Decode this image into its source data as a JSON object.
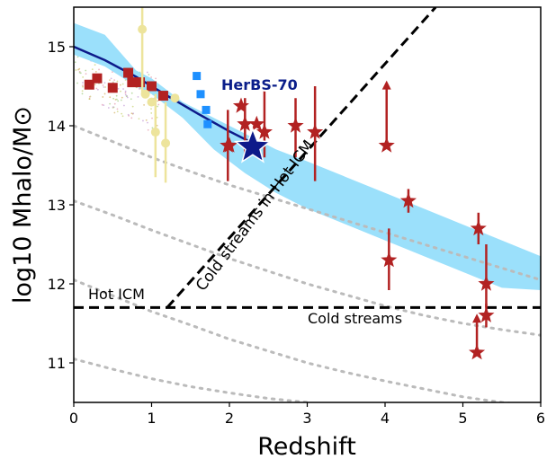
{
  "chart_data": {
    "type": "scatter",
    "xlabel": "Redshift",
    "ylabel": "log10 Mhalo/M⊙",
    "xlim": [
      0,
      6
    ],
    "ylim": [
      10.5,
      15.5
    ],
    "xticks": [
      "0",
      "1",
      "2",
      "3",
      "4",
      "5",
      "6"
    ],
    "yticks": [
      "11",
      "12",
      "13",
      "14",
      "15"
    ],
    "colors": {
      "band": "#9be0fb",
      "track": "#0d1a8a",
      "square_red": "#b22222",
      "square_blue": "#1e90ff",
      "circle_yellow": "#ede49c",
      "star_red": "#b22222",
      "star_herbs": "#0d1a8a",
      "dotted": "#bbbbbb"
    },
    "annotations": {
      "hot_icm": "Hot ICM",
      "cold_streams": "Cold streams",
      "cold_in_hot": "Cold streams in Hot ICM",
      "herbs": "HerBS-70"
    },
    "boundary_horizontal_y": 11.7,
    "boundary_diagonal": [
      [
        1.2,
        11.7
      ],
      [
        4.65,
        15.5
      ]
    ],
    "shaded_band": {
      "x": [
        0,
        0.4,
        0.8,
        1.0,
        1.4,
        1.8,
        2.2,
        2.6,
        3.0,
        3.5,
        4.0,
        4.5,
        5.0,
        5.5,
        6.0
      ],
      "upper": [
        15.3,
        15.15,
        14.7,
        14.6,
        14.3,
        14.1,
        13.9,
        13.7,
        13.55,
        13.35,
        13.15,
        12.95,
        12.75,
        12.55,
        12.35
      ],
      "lower": [
        14.9,
        14.75,
        14.5,
        14.4,
        14.1,
        13.7,
        13.4,
        13.15,
        12.95,
        12.75,
        12.55,
        12.35,
        12.15,
        11.95,
        11.92
      ]
    },
    "evolution_track": {
      "x": [
        0,
        0.4,
        0.8,
        1.2,
        1.6,
        2.0,
        2.3
      ],
      "y": [
        15.0,
        14.83,
        14.62,
        14.38,
        14.15,
        13.93,
        13.78
      ]
    },
    "dotted_tracks": [
      {
        "x": [
          0,
          0.5,
          1,
          1.5,
          2,
          2.5,
          3,
          3.5,
          4,
          4.5,
          5,
          5.5,
          6
        ],
        "y": [
          14.0,
          13.8,
          13.6,
          13.42,
          13.25,
          13.1,
          12.95,
          12.8,
          12.65,
          12.5,
          12.35,
          12.2,
          12.05
        ]
      },
      {
        "x": [
          0,
          0.5,
          1,
          1.5,
          2,
          2.5,
          3,
          3.5,
          4,
          4.5,
          5,
          5.5,
          6
        ],
        "y": [
          13.05,
          12.87,
          12.68,
          12.5,
          12.32,
          12.16,
          12.0,
          11.86,
          11.72,
          11.6,
          11.5,
          11.42,
          11.35
        ]
      },
      {
        "x": [
          0,
          0.5,
          1,
          1.5,
          2,
          2.5,
          3,
          3.5,
          4,
          4.5,
          5,
          5.5,
          6
        ],
        "y": [
          12.05,
          11.85,
          11.65,
          11.48,
          11.3,
          11.15,
          11.0,
          10.88,
          10.77,
          10.67,
          10.57,
          10.5,
          10.45
        ]
      },
      {
        "x": [
          0,
          0.5,
          1,
          1.5,
          2,
          2.5,
          3
        ],
        "y": [
          11.05,
          10.92,
          10.8,
          10.7,
          10.62,
          10.55,
          10.5
        ]
      }
    ],
    "series": [
      {
        "marker": "square",
        "color": "red",
        "points": [
          [
            0.2,
            14.52
          ],
          [
            0.3,
            14.6
          ],
          [
            0.5,
            14.48
          ],
          [
            0.7,
            14.67
          ],
          [
            0.75,
            14.55
          ],
          [
            0.85,
            14.55
          ],
          [
            1.0,
            14.5
          ],
          [
            1.15,
            14.38
          ]
        ]
      },
      {
        "marker": "square",
        "color": "blue",
        "points": [
          [
            1.58,
            14.63
          ],
          [
            1.63,
            14.4
          ],
          [
            1.7,
            14.2
          ],
          [
            1.72,
            14.02
          ]
        ]
      },
      {
        "marker": "circle",
        "color": "yellow",
        "points": [
          {
            "x": 0.88,
            "y": 15.22,
            "err": [
              14.42,
              15.5
            ]
          },
          {
            "x": 0.92,
            "y": 14.4
          },
          {
            "x": 1.0,
            "y": 14.3
          },
          {
            "x": 1.05,
            "y": 13.92,
            "err": [
              13.35,
              14.4
            ]
          },
          {
            "x": 1.18,
            "y": 13.78,
            "err": [
              13.28,
              14.3
            ]
          },
          {
            "x": 1.3,
            "y": 14.35
          }
        ]
      },
      {
        "marker": "star",
        "color": "red",
        "points": [
          {
            "x": 1.98,
            "y": 13.75,
            "err": [
              13.3,
              14.2
            ]
          },
          {
            "x": 2.0,
            "y": 13.75
          },
          {
            "x": 2.15,
            "y": 14.25
          },
          {
            "x": 2.2,
            "y": 14.02,
            "err": [
              13.65,
              14.35
            ]
          },
          {
            "x": 2.35,
            "y": 14.02
          },
          {
            "x": 2.45,
            "y": 13.92,
            "err": [
              13.6,
              14.45
            ]
          },
          {
            "x": 2.85,
            "y": 14.0,
            "err": [
              13.6,
              14.35
            ]
          },
          {
            "x": 3.1,
            "y": 13.92,
            "err": [
              13.3,
              14.5
            ]
          },
          {
            "x": 4.02,
            "y": 13.75,
            "lower_limit_to": 14.55
          },
          {
            "x": 4.3,
            "y": 13.05,
            "err": [
              12.9,
              13.2
            ]
          },
          {
            "x": 4.05,
            "y": 12.3,
            "err": [
              11.92,
              12.7
            ]
          },
          {
            "x": 5.2,
            "y": 12.7,
            "err": [
              12.5,
              12.9
            ]
          },
          {
            "x": 5.3,
            "y": 12.0,
            "err": [
              11.7,
              12.5
            ]
          },
          {
            "x": 5.3,
            "y": 11.6,
            "err": [
              11.45,
              11.75
            ]
          },
          {
            "x": 5.18,
            "y": 11.13,
            "lower_limit_to": 11.6
          }
        ]
      },
      {
        "marker": "star",
        "color": "navy",
        "name": "HerBS-70",
        "points": [
          [
            2.3,
            13.73
          ]
        ]
      }
    ]
  }
}
